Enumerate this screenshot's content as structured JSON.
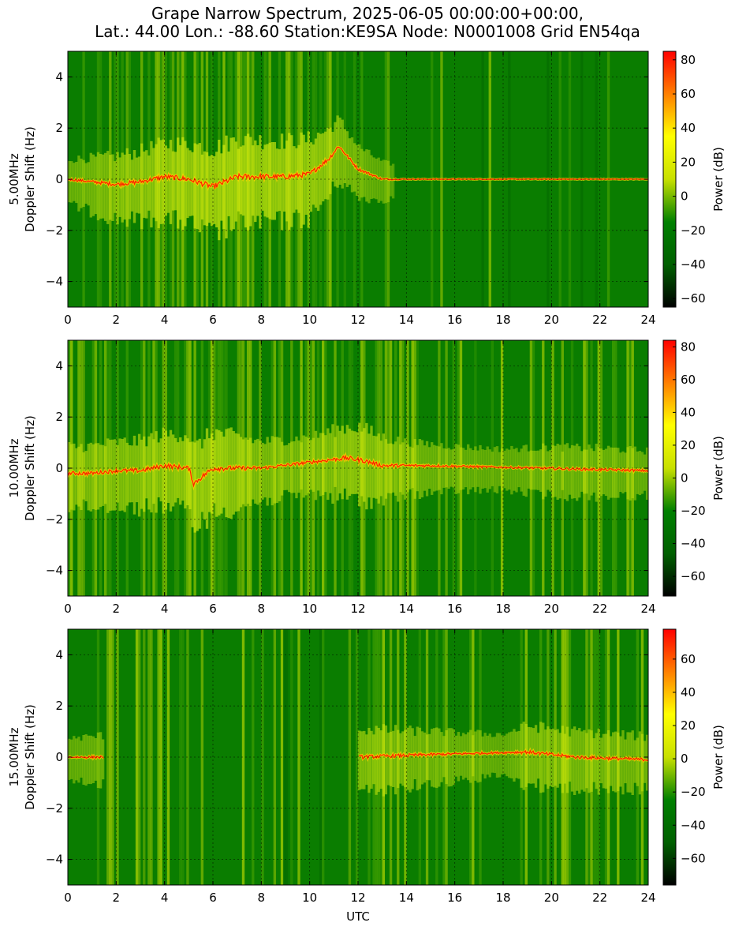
{
  "figure": {
    "title_line1": "Grape Narrow Spectrum, 2025-06-05 00:00:00+00:00,",
    "title_line2": "Lat.: 44.00 Lon.: -88.60 Station:KE9SA Node: N0001008 Grid EN54qa",
    "xlabel": "UTC"
  },
  "colors": {
    "background": "#ffffff",
    "axis": "#000000",
    "grid": "#000000",
    "colormap": [
      "#000000",
      "#006000",
      "#008000",
      "#c8e000",
      "#ffff00",
      "#ff8000",
      "#ff0000"
    ]
  },
  "chart_data": [
    {
      "type": "heatmap",
      "ylabel_line1": "5.00MHz",
      "ylabel_line2": "Doppler Shift (Hz)",
      "xlim": [
        0,
        24
      ],
      "ylim": [
        -5,
        5
      ],
      "x_ticks": [
        0,
        2,
        4,
        6,
        8,
        10,
        12,
        14,
        16,
        18,
        20,
        22,
        24
      ],
      "y_ticks": [
        -4,
        -2,
        0,
        2,
        4
      ],
      "colorbar": {
        "label": "Power (dB)",
        "range": [
          -65,
          85
        ],
        "ticks": [
          -60,
          -40,
          -20,
          0,
          20,
          40,
          60,
          80
        ]
      },
      "grid": true,
      "trace": [
        [
          0.0,
          0.0
        ],
        [
          2.0,
          -0.2
        ],
        [
          3.0,
          -0.1
        ],
        [
          4.0,
          0.1
        ],
        [
          5.0,
          0.0
        ],
        [
          6.0,
          -0.3
        ],
        [
          7.0,
          0.1
        ],
        [
          8.0,
          0.1
        ],
        [
          9.0,
          0.1
        ],
        [
          10.0,
          0.2
        ],
        [
          10.8,
          0.8
        ],
        [
          11.2,
          1.3
        ],
        [
          12.0,
          0.4
        ],
        [
          13.0,
          0.0
        ],
        [
          24.0,
          0.0
        ]
      ],
      "activity": [
        [
          0,
          0.35
        ],
        [
          2,
          0.6
        ],
        [
          4,
          0.75
        ],
        [
          6,
          0.9
        ],
        [
          8,
          0.85
        ],
        [
          10,
          0.8
        ],
        [
          11,
          0.6
        ],
        [
          12.5,
          0.35
        ],
        [
          14,
          0.12
        ],
        [
          24,
          0.1
        ]
      ]
    },
    {
      "type": "heatmap",
      "ylabel_line1": "10.00MHz",
      "ylabel_line2": "Doppler Shift (Hz)",
      "xlim": [
        0,
        24
      ],
      "ylim": [
        -5,
        5
      ],
      "x_ticks": [
        0,
        2,
        4,
        6,
        8,
        10,
        12,
        14,
        16,
        18,
        20,
        22,
        24
      ],
      "y_ticks": [
        -4,
        -2,
        0,
        2,
        4
      ],
      "colorbar": {
        "label": "Power (dB)",
        "range": [
          -72,
          84
        ],
        "ticks": [
          -60,
          -40,
          -20,
          0,
          20,
          40,
          60,
          80
        ]
      },
      "grid": true,
      "trace": [
        [
          0.0,
          -0.2
        ],
        [
          1.0,
          -0.2
        ],
        [
          2.0,
          -0.1
        ],
        [
          3.0,
          -0.1
        ],
        [
          4.0,
          0.1
        ],
        [
          5.0,
          0.0
        ],
        [
          5.2,
          -0.6
        ],
        [
          6.0,
          0.0
        ],
        [
          8.0,
          0.0
        ],
        [
          11.5,
          0.4
        ],
        [
          12.2,
          0.3
        ],
        [
          13.0,
          0.1
        ],
        [
          15.0,
          0.1
        ],
        [
          24.0,
          -0.1
        ]
      ],
      "activity": [
        [
          0,
          0.55
        ],
        [
          2,
          0.6
        ],
        [
          4,
          0.7
        ],
        [
          6,
          0.85
        ],
        [
          8,
          0.55
        ],
        [
          10,
          0.5
        ],
        [
          12,
          0.75
        ],
        [
          14,
          0.45
        ],
        [
          16,
          0.35
        ],
        [
          18,
          0.3
        ],
        [
          20,
          0.4
        ],
        [
          22,
          0.4
        ],
        [
          24,
          0.35
        ]
      ]
    },
    {
      "type": "heatmap",
      "ylabel_line1": "15.00MHz",
      "ylabel_line2": "Doppler Shift (Hz)",
      "xlim": [
        0,
        24
      ],
      "ylim": [
        -5,
        5
      ],
      "x_ticks": [
        0,
        2,
        4,
        6,
        8,
        10,
        12,
        14,
        16,
        18,
        20,
        22,
        24
      ],
      "y_ticks": [
        -4,
        -2,
        0,
        2,
        4
      ],
      "colorbar": {
        "label": "Power (dB)",
        "range": [
          -76,
          78
        ],
        "ticks": [
          -60,
          -40,
          -20,
          0,
          20,
          40,
          60
        ]
      },
      "grid": true,
      "trace": [
        [
          0.0,
          0.0
        ],
        [
          1.5,
          0.0
        ],
        [
          2.0,
          null
        ],
        [
          11.8,
          null
        ],
        [
          12.0,
          0.0
        ],
        [
          15.0,
          0.1
        ],
        [
          19.0,
          0.2
        ],
        [
          21.0,
          0.0
        ],
        [
          24.0,
          -0.1
        ]
      ],
      "activity": [
        [
          0,
          0.3
        ],
        [
          2,
          0.45
        ],
        [
          4,
          0.55
        ],
        [
          5,
          0.6
        ],
        [
          6,
          0.3
        ],
        [
          8,
          0.15
        ],
        [
          11,
          0.2
        ],
        [
          12,
          0.6
        ],
        [
          14,
          0.5
        ],
        [
          16,
          0.4
        ],
        [
          18,
          0.3
        ],
        [
          19,
          0.55
        ],
        [
          22,
          0.5
        ],
        [
          24,
          0.45
        ]
      ]
    }
  ]
}
